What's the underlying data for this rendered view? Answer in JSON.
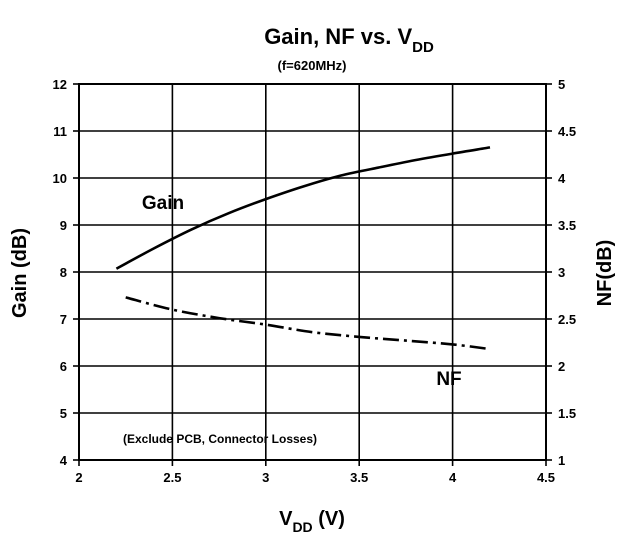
{
  "chart_data": {
    "type": "line",
    "title": "Gain, NF vs. V",
    "title_subscript": "DD",
    "subtitle": "(f=620MHz)",
    "xlabel": "V",
    "xlabel_subscript": "DD",
    "xlabel_unit": " (V)",
    "ylabel_left": "Gain (dB)",
    "ylabel_right": "NF(dB)",
    "xlim": [
      2,
      4.5
    ],
    "ylim_left": [
      4,
      12
    ],
    "ylim_right": [
      1,
      5
    ],
    "x_ticks": [
      "2",
      "2.5",
      "3",
      "3.5",
      "4",
      "4.5"
    ],
    "y_left_ticks": [
      "4",
      "5",
      "6",
      "7",
      "8",
      "9",
      "10",
      "11",
      "12"
    ],
    "y_right_ticks": [
      "1",
      "1.5",
      "2",
      "2.5",
      "3",
      "3.5",
      "4",
      "4.5",
      "5"
    ],
    "grid": true,
    "annotation": "(Exclude PCB, Connector Losses)",
    "series": [
      {
        "name": "Gain",
        "axis": "left",
        "style": "solid",
        "color": "#000000",
        "x": [
          2.2,
          2.4,
          2.6,
          2.8,
          3.0,
          3.2,
          3.4,
          3.6,
          3.8,
          4.0,
          4.2
        ],
        "y": [
          8.07,
          8.5,
          8.9,
          9.25,
          9.55,
          9.82,
          10.05,
          10.22,
          10.38,
          10.52,
          10.65
        ]
      },
      {
        "name": "NF",
        "axis": "right",
        "style": "dashdot",
        "color": "#000000",
        "x": [
          2.25,
          2.5,
          2.75,
          3.0,
          3.25,
          3.5,
          3.75,
          4.0,
          4.2
        ],
        "y": [
          2.73,
          2.6,
          2.51,
          2.44,
          2.36,
          2.31,
          2.27,
          2.23,
          2.18
        ]
      }
    ]
  }
}
